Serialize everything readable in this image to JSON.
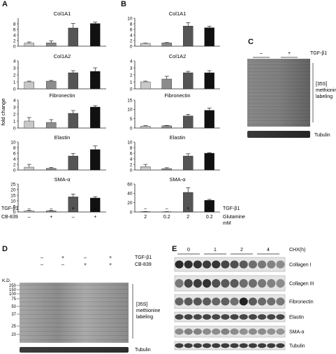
{
  "panel_letters": [
    "A",
    "B",
    "C",
    "D",
    "E"
  ],
  "chart_data": [
    {
      "panel": "A",
      "type": "bar",
      "ylabel": "fold change",
      "conditions": {
        "rows": [
          {
            "label": "TGF-β1",
            "values": [
              "–",
              "–",
              "+",
              "+"
            ]
          },
          {
            "label": "CB-839",
            "values": [
              "–",
              "+",
              "–",
              "+"
            ]
          }
        ]
      },
      "bar_colors": [
        "#c8c8c8",
        "#8c8c8c",
        "#555555",
        "#111111"
      ],
      "subplots": [
        {
          "title": "Col1A1",
          "ylim": [
            0,
            10
          ],
          "yticks": [
            0,
            2,
            4,
            6,
            8
          ],
          "values": [
            1.1,
            1.2,
            6.5,
            8.1
          ],
          "errors": [
            0.4,
            0.7,
            1.6,
            0.5
          ]
        },
        {
          "title": "Col1A2",
          "ylim": [
            0,
            4
          ],
          "yticks": [
            0,
            1,
            2,
            3,
            4
          ],
          "values": [
            1.0,
            1.1,
            2.3,
            2.5
          ],
          "errors": [
            0.1,
            0.1,
            0.3,
            0.5
          ]
        },
        {
          "title": "Fibronectin",
          "ylim": [
            0,
            4
          ],
          "yticks": [
            0,
            1,
            2,
            3,
            4
          ],
          "values": [
            1.0,
            0.8,
            2.1,
            3.0
          ],
          "errors": [
            0.5,
            0.4,
            0.4,
            0.2
          ]
        },
        {
          "title": "Elastin",
          "ylim": [
            0,
            10
          ],
          "yticks": [
            0,
            2,
            4,
            6,
            8,
            10
          ],
          "values": [
            1.0,
            0.6,
            5.0,
            7.3
          ],
          "errors": [
            1.0,
            0.3,
            0.9,
            1.3
          ]
        },
        {
          "title": "SMA-α",
          "ylim": [
            0,
            25
          ],
          "yticks": [
            0,
            5,
            10,
            15,
            20,
            25
          ],
          "values": [
            1.0,
            1.0,
            13.5,
            12.5
          ],
          "errors": [
            0.5,
            0.5,
            2.5,
            1.2
          ]
        }
      ]
    },
    {
      "panel": "B",
      "type": "bar",
      "conditions": {
        "rows": [
          {
            "label": "TGF-β1",
            "values": [
              "–",
              "–",
              "+",
              "+"
            ]
          },
          {
            "label": "Glutamine\nmM",
            "values": [
              "2",
              "0.2",
              "2",
              "0.2"
            ]
          }
        ]
      },
      "bar_colors": [
        "#c8c8c8",
        "#8c8c8c",
        "#555555",
        "#111111"
      ],
      "subplots": [
        {
          "title": "Col1A1",
          "ylim": [
            0,
            10
          ],
          "yticks": [
            0,
            2,
            4,
            6,
            8,
            10
          ],
          "values": [
            1.0,
            1.2,
            7.2,
            6.6
          ],
          "errors": [
            0.1,
            0.1,
            1.2,
            0.5
          ]
        },
        {
          "title": "Col1A2",
          "ylim": [
            0,
            4
          ],
          "yticks": [
            0,
            1,
            2,
            3,
            4
          ],
          "values": [
            1.0,
            1.4,
            2.3,
            2.3
          ],
          "errors": [
            0.1,
            0.4,
            0.2,
            0.3
          ]
        },
        {
          "title": "Fibronectin",
          "ylim": [
            0,
            15
          ],
          "yticks": [
            0,
            5,
            10,
            15
          ],
          "values": [
            1.0,
            1.2,
            6.5,
            9.5
          ],
          "errors": [
            0.3,
            0.2,
            0.8,
            1.2
          ]
        },
        {
          "title": "Elastin",
          "ylim": [
            0,
            10
          ],
          "yticks": [
            0,
            2,
            4,
            6,
            8,
            10
          ],
          "values": [
            1.2,
            0.5,
            5.0,
            6.0
          ],
          "errors": [
            0.8,
            0.3,
            0.8,
            0.2
          ]
        },
        {
          "title": "SMA-α",
          "ylim": [
            0,
            60
          ],
          "yticks": [
            0,
            20,
            40,
            60
          ],
          "values": [
            0.8,
            0.5,
            42,
            25
          ],
          "errors": [
            0.3,
            0.2,
            10,
            2
          ]
        }
      ]
    }
  ],
  "panel_c": {
    "conditions": [
      "–",
      "+"
    ],
    "treatment": "TGF-β1",
    "labeling_label": [
      "[35S]",
      "methionine",
      "labeling"
    ],
    "loading_label": "Tubulin"
  },
  "panel_d": {
    "treatment_rows": [
      {
        "label": "TGF-β1",
        "values": [
          "–",
          "+",
          "–",
          "+"
        ]
      },
      {
        "label": "CB-839",
        "values": [
          "–",
          "–",
          "+",
          "+"
        ]
      }
    ],
    "kd_header": "K.D.",
    "markers": [
      "250",
      "150",
      "100",
      "75",
      "50",
      "37",
      "25",
      "20"
    ],
    "labeling_label": [
      "[35S]",
      "methionine",
      "labeling"
    ],
    "loading_label": "Tubulin"
  },
  "panel_e": {
    "axis_label": "CHX(h)",
    "timepoints": [
      "0",
      "1",
      "2",
      "4"
    ],
    "proteins": [
      "Collagen I",
      "Collagen III",
      "Fibronectin",
      "Elastin",
      "SMA-α",
      "Tubulin"
    ]
  }
}
